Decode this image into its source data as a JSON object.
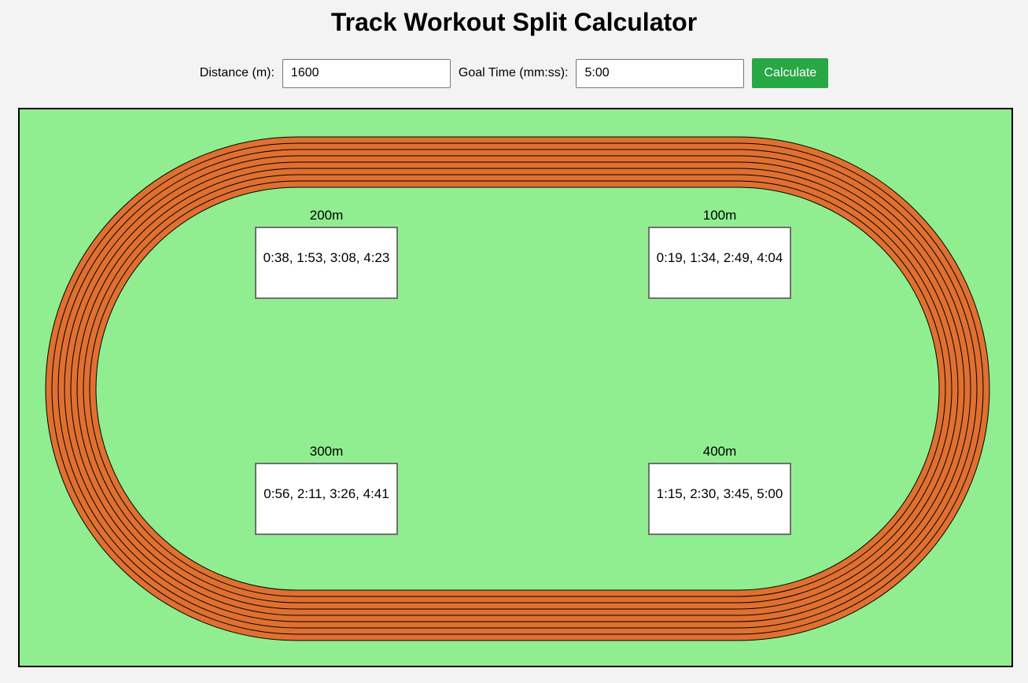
{
  "page": {
    "title": "Track Workout Split Calculator"
  },
  "controls": {
    "distance_label": "Distance (m):",
    "distance_value": "1600",
    "goal_time_label": "Goal Time (mm:ss):",
    "goal_time_value": "5:00",
    "calculate_label": "Calculate"
  },
  "track": {
    "lanes": 8,
    "colors": {
      "infield": "#90ee90",
      "track": "#e07030",
      "lines": "#000000",
      "button": "#28a745"
    },
    "splits": {
      "m200": {
        "label": "200m",
        "times": "0:38, 1:53, 3:08, 4:23"
      },
      "m100": {
        "label": "100m",
        "times": "0:19, 1:34, 2:49, 4:04"
      },
      "m300": {
        "label": "300m",
        "times": "0:56, 2:11, 3:26, 4:41"
      },
      "m400": {
        "label": "400m",
        "times": "1:15, 2:30, 3:45, 5:00"
      }
    }
  }
}
